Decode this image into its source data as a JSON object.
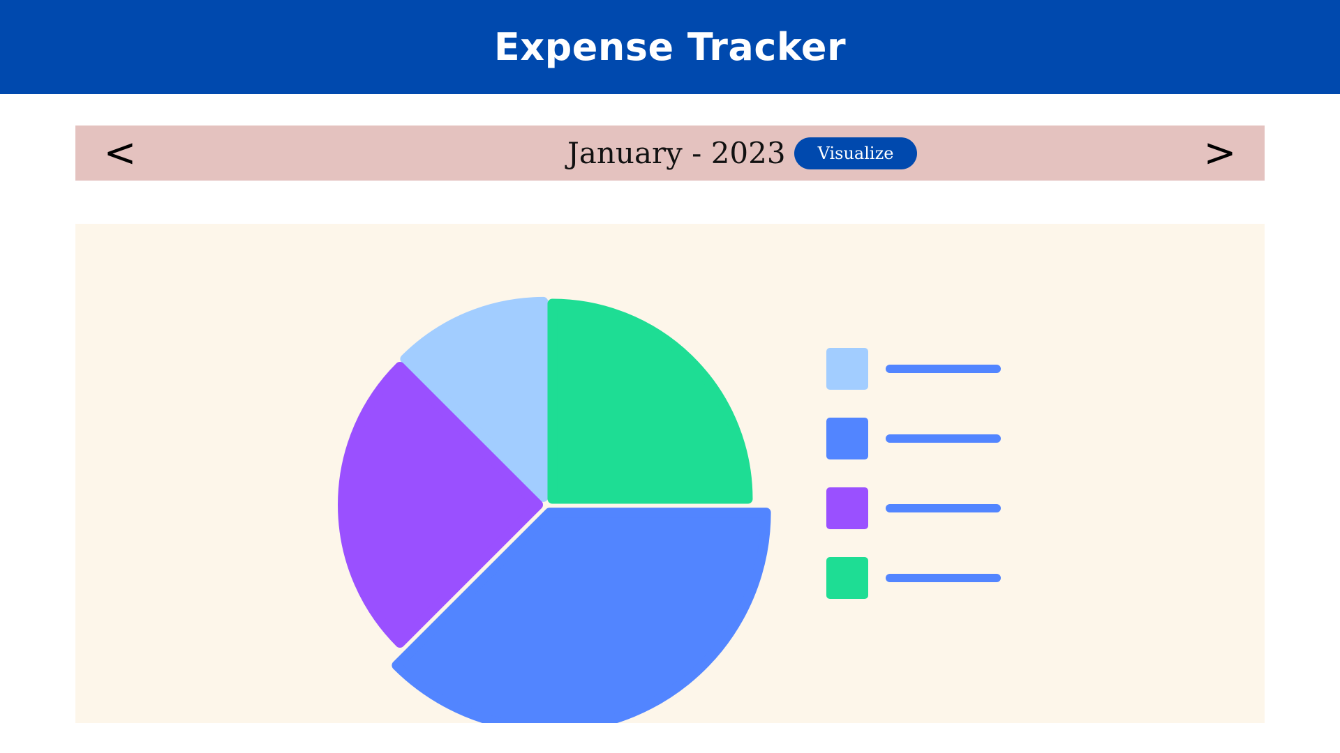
{
  "header": {
    "title": "Expense Tracker"
  },
  "month_bar": {
    "prev_label": "<",
    "next_label": ">",
    "month": "January - 2023",
    "visualize_label": "Visualize"
  },
  "colors": {
    "header_bg": "#0049AE",
    "month_bar_bg": "#E4C2BF",
    "panel_bg": "#FDF6EA",
    "legend_line": "#5285FF"
  },
  "chart_data": {
    "type": "pie",
    "title": "",
    "slices": [
      {
        "value": 12.5,
        "color": "#A2CDFF"
      },
      {
        "value": 25,
        "color": "#1EDD94"
      },
      {
        "value": 37.5,
        "color": "#5285FF"
      },
      {
        "value": 25,
        "color": "#9A50FF"
      }
    ],
    "legend": {
      "placement": "right",
      "entries": [
        {
          "color": "#A2CDFF"
        },
        {
          "color": "#5285FF"
        },
        {
          "color": "#9A50FF"
        },
        {
          "color": "#1EDD94"
        }
      ]
    }
  }
}
